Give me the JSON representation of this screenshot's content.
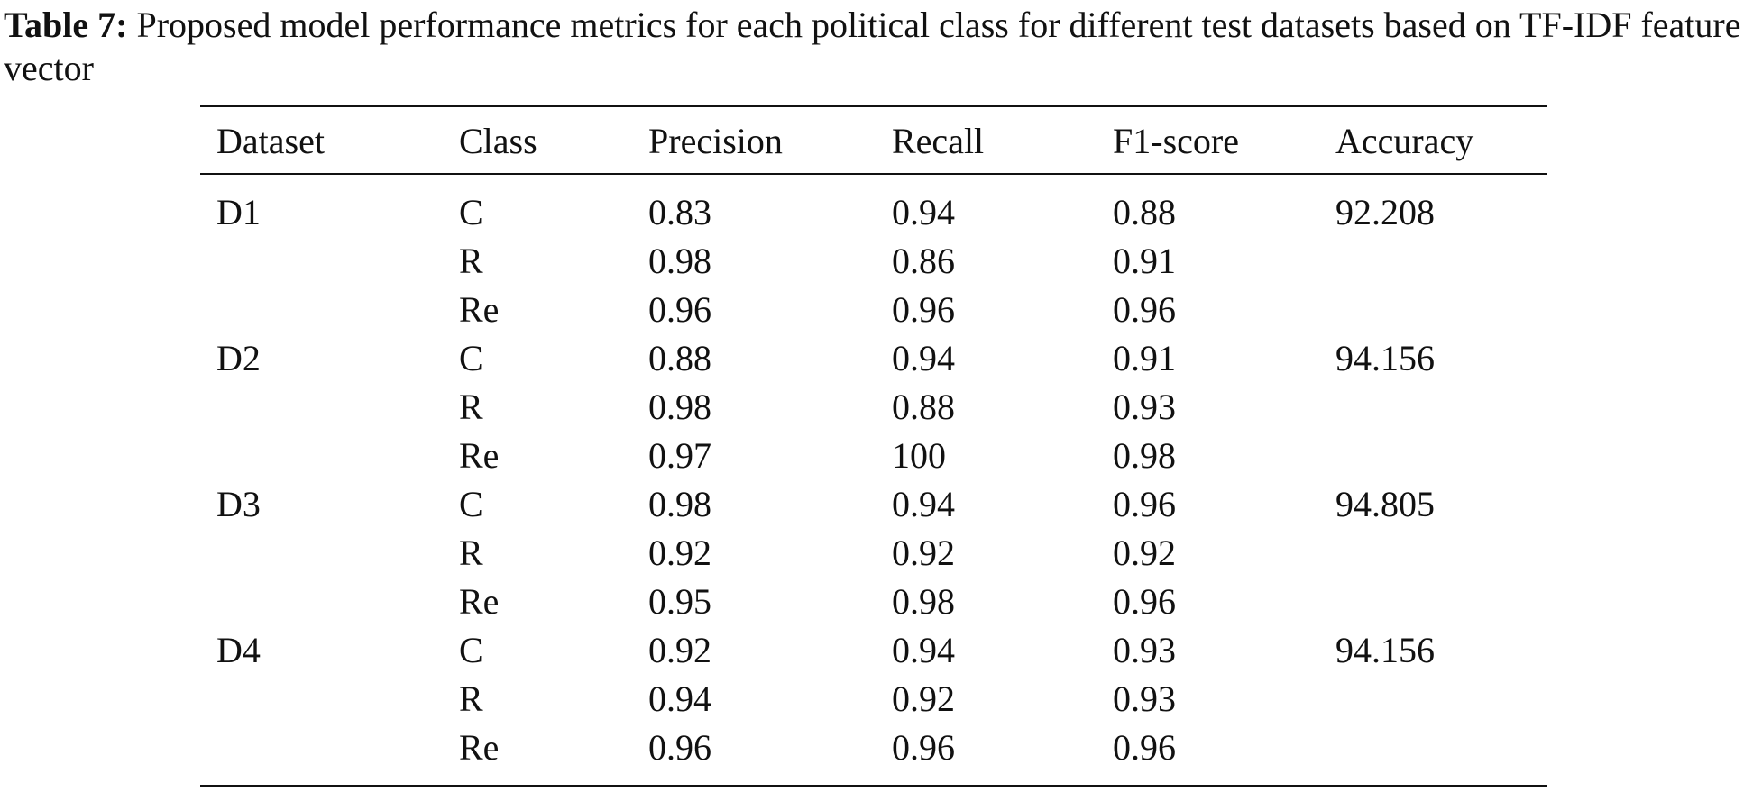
{
  "caption": {
    "label": "Table 7:",
    "text": " Proposed model performance metrics for each political class for different test datasets based on TF-IDF feature vector"
  },
  "table": {
    "headers": [
      "Dataset",
      "Class",
      "Precision",
      "Recall",
      "F1-score",
      "Accuracy"
    ],
    "rows": [
      [
        "D1",
        "C",
        "0.83",
        "0.94",
        "0.88",
        "92.208"
      ],
      [
        "",
        "R",
        "0.98",
        "0.86",
        "0.91",
        ""
      ],
      [
        "",
        "Re",
        "0.96",
        "0.96",
        "0.96",
        ""
      ],
      [
        "D2",
        "C",
        "0.88",
        "0.94",
        "0.91",
        "94.156"
      ],
      [
        "",
        "R",
        "0.98",
        "0.88",
        "0.93",
        ""
      ],
      [
        "",
        "Re",
        "0.97",
        "100",
        "0.98",
        ""
      ],
      [
        "D3",
        "C",
        "0.98",
        "0.94",
        "0.96",
        "94.805"
      ],
      [
        "",
        "R",
        "0.92",
        "0.92",
        "0.92",
        ""
      ],
      [
        "",
        "Re",
        "0.95",
        "0.98",
        "0.96",
        ""
      ],
      [
        "D4",
        "C",
        "0.92",
        "0.94",
        "0.93",
        "94.156"
      ],
      [
        "",
        "R",
        "0.94",
        "0.92",
        "0.93",
        ""
      ],
      [
        "",
        "Re",
        "0.96",
        "0.96",
        "0.96",
        ""
      ]
    ]
  }
}
